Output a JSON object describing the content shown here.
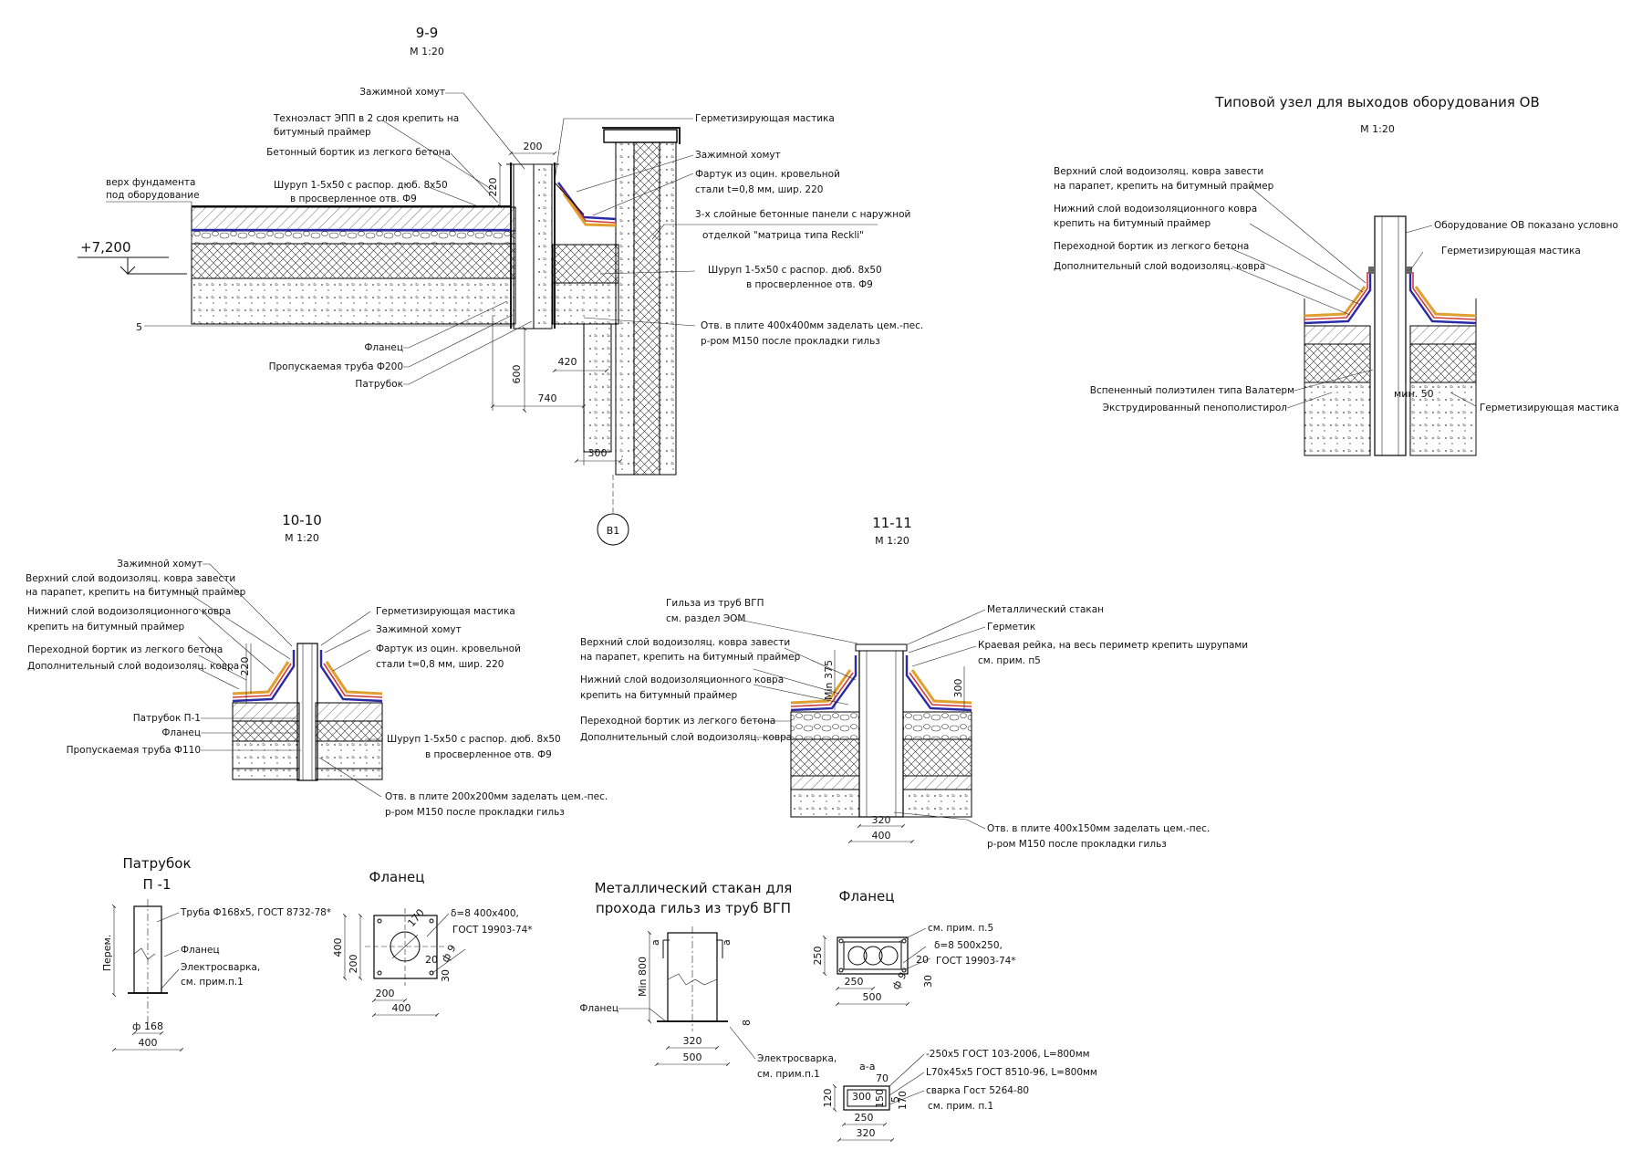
{
  "sections": {
    "s99": {
      "title": "9-9",
      "scale": "М 1:20",
      "level_mark": "+7,200",
      "labels": {
        "clamp": "Зажимной хомут",
        "tech1": "Техноэласт ЭПП в 2 слоя крепить на",
        "tech2": "битумный праймер",
        "curb": "Бетонный бортик из легкого бетона",
        "screw1": "Шуруп 1-5х50 с распор. дюб. 8х50",
        "screw2": "в просверленное отв. Ф9",
        "top1": "верх фундамента",
        "top2": "под оборудование",
        "flange": "Фланец",
        "pipe": "Пропускаемая труба Ф200",
        "spigot": "Патрубок",
        "mastic": "Герметизирующая мастика",
        "clamp2": "Зажимной хомут",
        "flash1": "Фартук из оцин. кровельной",
        "flash2": "стали t=0,8 мм, шир. 220",
        "panel1": "3-х слойные бетонные панели с наружной",
        "panel2": "отделкой  \"матрица типа Reckli\"",
        "screwr1": "Шуруп 1-5х50 с распор. дюб. 8х50",
        "screwr2": "в просверленное отв. Ф9",
        "hole1": "Отв. в плите 400х400мм заделать цем.-пес.",
        "hole2": "р-ром М150 после прокладки гильз"
      },
      "dims": {
        "d200": "200",
        "d220": "220",
        "d420": "420",
        "d600": "600",
        "d740": "740",
        "d300": "300"
      },
      "axis": "В1"
    },
    "typ": {
      "title": "Типовой узел для выходов оборудования ОВ",
      "scale": "М 1:20",
      "labels": {
        "up1": "Верхний слой водоизоляц. ковра завести",
        "up2": "на парапет, крепить на битумный праймер",
        "low1": "Нижний слой водоизоляционного ковра",
        "low2": "крепить на битумный праймер",
        "curb": "Переходной бортик из легкого бетона",
        "extra": "Дополнительный слой водоизоляц. ковра",
        "equip": "Оборудование ОВ показано условно",
        "mastic": "Герметизирующая мастика",
        "foam": "Вспененный полиэтилен типа Валатерм",
        "xps": "Экструдированный пенополистирол",
        "mastic2": "Герметизирующая мастика"
      },
      "dims": {
        "min50": "мин. 50"
      }
    },
    "s1010": {
      "title": "10-10",
      "scale": "М 1:20",
      "labels": {
        "clamp": "Зажимной хомут",
        "up1": "Верхний слой водоизоляц. ковра завести",
        "up2": "на парапет, крепить на битумный праймер",
        "low1": "Нижний слой водоизоляционного ковра",
        "low2": "крепить на битумный праймер",
        "curb": "Переходной бортик из легкого бетона",
        "extra": "Дополнительный слой водоизоляц. ковра",
        "spigot": "Патрубок П-1",
        "flange": "Фланец",
        "pipe": "Пропускаемая труба Ф110",
        "mastic": "Герметизирующая мастика",
        "clamp2": "Зажимной хомут",
        "flash1": "Фартук из оцин. кровельной",
        "flash2": "стали t=0,8 мм, шир. 220",
        "screw1": "Шуруп 1-5х50 с распор. дюб. 8х50",
        "screw2": "в просверленное отв. Ф9",
        "hole1": "Отв. в плите 200х200мм заделать цем.-пес.",
        "hole2": "р-ром М150 после прокладки гильз"
      },
      "dims": {
        "d220": "220"
      }
    },
    "s1111": {
      "title": "11-11",
      "scale": "М 1:20",
      "labels": {
        "sleeve1": "Гильза из труб ВГП",
        "sleeve2": "см. раздел ЭОМ",
        "up1": "Верхний слой водоизоляц. ковра завести",
        "up2": "на парапет, крепить на битумный праймер",
        "low1": "Нижний слой водоизоляционного ковра",
        "low2": "крепить на битумный праймер",
        "curb": "Переходной бортик из легкого бетона",
        "extra": "Дополнительный слой водоизоляц. ковра",
        "cup": "Металлический стакан",
        "seal": "Герметик",
        "rail1": "Краевая рейка, на весь периметр крепить шурупами",
        "rail2": "см. прим. п5",
        "hole1": "Отв. в плите 400х150мм заделать цем.-пес.",
        "hole2": "р-ром М150 после прокладки гильз"
      },
      "dims": {
        "min375": "Min 375",
        "d300": "300",
        "d320": "320",
        "d400": "400"
      }
    }
  },
  "details": {
    "spigot": {
      "title1": "Патрубок",
      "title2": "П -1",
      "pipe": "Труба Ф168х5, ГОСТ 8732-78*",
      "flange": "Фланец",
      "weld1": "Электросварка,",
      "weld2": "см. прим.п.1",
      "var": "Перем.",
      "d168": "ф 168",
      "d400": "400"
    },
    "flange1": {
      "title": "Фланец",
      "spec1": "δ=8  400х400,",
      "spec2": "ГОСТ 19903-74*",
      "d170": "170",
      "d20": "20",
      "d9": "ф 9",
      "d30": "30",
      "d200v": "200",
      "d400v": "400",
      "d200": "200",
      "d400": "400"
    },
    "cup": {
      "title1": "Металлический стакан для",
      "title2": "прохода гильз из труб ВГП",
      "min800": "Min 800",
      "flange": "Фланец",
      "weld1": "Электросварка,",
      "weld2": "см. прим.п.1",
      "d320": "320",
      "d500": "500",
      "d8": "8",
      "cut": "а"
    },
    "flange2": {
      "title": "Фланец",
      "note": "см. прим. п.5",
      "spec1": "δ=8  500х250,",
      "spec2": "ГОСТ 19903-74*",
      "d250v": "250",
      "d250": "250",
      "d500": "500",
      "d20": "20",
      "d9": "ф 9",
      "d30": "30"
    },
    "aa": {
      "title": "а-а",
      "spec1": "-250х5 ГОСТ 103-2006, L=800мм",
      "spec2": "L70х45х5 ГОСТ 8510-96, L=800мм",
      "spec3": "сварка Гост 5264-80",
      "spec4": "см. прим. п.1",
      "d70": "70",
      "d300": "300",
      "d150": "150",
      "d120": "120",
      "d170": "170",
      "d250": "250",
      "d320": "320",
      "d5": "5"
    }
  }
}
